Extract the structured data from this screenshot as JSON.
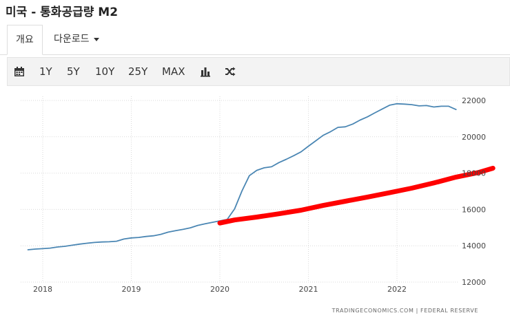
{
  "header": {
    "title": "미국 - 통화공급량 M2"
  },
  "tabs": [
    {
      "label": "개요"
    },
    {
      "label": "다운로드"
    }
  ],
  "toolbar": {
    "ranges": [
      "1Y",
      "5Y",
      "10Y",
      "25Y",
      "MAX"
    ],
    "icons": [
      "calendar-icon",
      "bar-chart-icon",
      "shuffle-icon"
    ]
  },
  "chart_data": {
    "type": "line",
    "ylim": [
      12000,
      22000
    ],
    "y_ticks": [
      "22000",
      "20000",
      "18000",
      "16000",
      "14000",
      "12000"
    ],
    "x_ticks": [
      "2018",
      "2019",
      "2020",
      "2021",
      "2022"
    ],
    "grid": true,
    "y_axis_side": "right",
    "source": "TRADINGECONOMICS.COM  |  FEDERAL RESERVE",
    "series": [
      {
        "color": "#4a86b3",
        "points": [
          [
            "2017-11",
            13780
          ],
          [
            "2017-12",
            13820
          ],
          [
            "2018-01",
            13840
          ],
          [
            "2018-02",
            13870
          ],
          [
            "2018-03",
            13930
          ],
          [
            "2018-04",
            13970
          ],
          [
            "2018-05",
            14030
          ],
          [
            "2018-06",
            14090
          ],
          [
            "2018-07",
            14140
          ],
          [
            "2018-08",
            14180
          ],
          [
            "2018-09",
            14210
          ],
          [
            "2018-10",
            14220
          ],
          [
            "2018-11",
            14250
          ],
          [
            "2018-12",
            14370
          ],
          [
            "2019-01",
            14430
          ],
          [
            "2019-02",
            14460
          ],
          [
            "2019-03",
            14510
          ],
          [
            "2019-04",
            14550
          ],
          [
            "2019-05",
            14630
          ],
          [
            "2019-06",
            14750
          ],
          [
            "2019-07",
            14830
          ],
          [
            "2019-08",
            14900
          ],
          [
            "2019-09",
            14990
          ],
          [
            "2019-10",
            15120
          ],
          [
            "2019-11",
            15210
          ],
          [
            "2019-12",
            15290
          ],
          [
            "2020-01",
            15370
          ],
          [
            "2020-02",
            15450
          ],
          [
            "2020-03",
            16030
          ],
          [
            "2020-04",
            17020
          ],
          [
            "2020-05",
            17860
          ],
          [
            "2020-06",
            18150
          ],
          [
            "2020-07",
            18290
          ],
          [
            "2020-08",
            18350
          ],
          [
            "2020-09",
            18580
          ],
          [
            "2020-10",
            18760
          ],
          [
            "2020-11",
            18960
          ],
          [
            "2020-12",
            19170
          ],
          [
            "2021-01",
            19480
          ],
          [
            "2021-02",
            19780
          ],
          [
            "2021-03",
            20080
          ],
          [
            "2021-04",
            20280
          ],
          [
            "2021-05",
            20520
          ],
          [
            "2021-06",
            20550
          ],
          [
            "2021-07",
            20700
          ],
          [
            "2021-08",
            20920
          ],
          [
            "2021-09",
            21100
          ],
          [
            "2021-10",
            21320
          ],
          [
            "2021-11",
            21530
          ],
          [
            "2021-12",
            21740
          ],
          [
            "2022-01",
            21820
          ],
          [
            "2022-02",
            21800
          ],
          [
            "2022-03",
            21770
          ],
          [
            "2022-04",
            21700
          ],
          [
            "2022-05",
            21720
          ],
          [
            "2022-06",
            21640
          ],
          [
            "2022-07",
            21680
          ],
          [
            "2022-08",
            21680
          ],
          [
            "2022-09",
            21500
          ]
        ]
      },
      {
        "color": "#ff0000",
        "points": [
          [
            "2020-01",
            15250
          ],
          [
            "2020-03",
            15420
          ],
          [
            "2020-06",
            15580
          ],
          [
            "2020-09",
            15760
          ],
          [
            "2020-12",
            15960
          ],
          [
            "2021-03",
            16220
          ],
          [
            "2021-06",
            16450
          ],
          [
            "2021-09",
            16680
          ],
          [
            "2021-12",
            16920
          ],
          [
            "2022-03",
            17170
          ],
          [
            "2022-06",
            17460
          ],
          [
            "2022-09",
            17780
          ],
          [
            "2022-12",
            18030
          ],
          [
            "2023-02",
            18270
          ]
        ]
      }
    ]
  }
}
